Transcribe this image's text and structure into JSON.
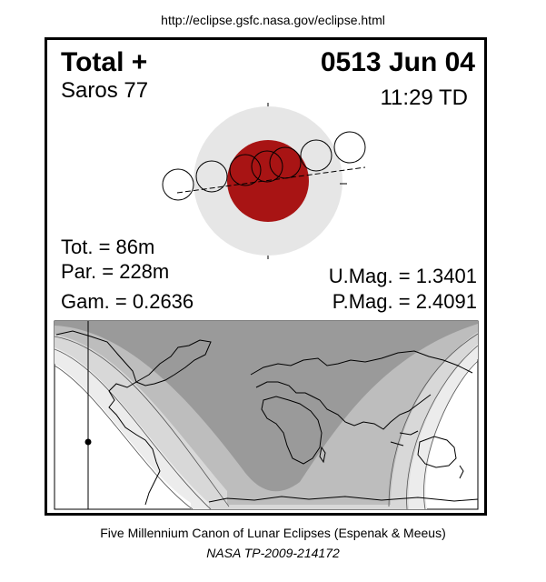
{
  "header": {
    "url": "http://eclipse.gsfc.nasa.gov/eclipse.html",
    "eclipse_type": "Total  +",
    "date": "0513 Jun 04",
    "saros": "Saros  77",
    "time": "11:29 TD"
  },
  "stats": {
    "totality": "Tot. =  86m",
    "partial": "Par. = 228m",
    "gamma": "Gam. = 0.2636",
    "umbral_magnitude": "U.Mag. = 1.3401",
    "penumbral_magnitude": "P.Mag. = 2.4091"
  },
  "footer": {
    "canon": "Five Millennium Canon of Lunar Eclipses (Espenak & Meeus)",
    "publication": "NASA TP-2009-214172"
  },
  "colors": {
    "penumbra": "#e6e6e6",
    "umbra": "#a81414",
    "map_land": "#ffffff",
    "map_zone_dark": "#9a9a9a",
    "map_zone_mid": "#bdbdbd",
    "map_zone_light": "#d8d8d8",
    "map_zone_lightest": "#ececec"
  }
}
